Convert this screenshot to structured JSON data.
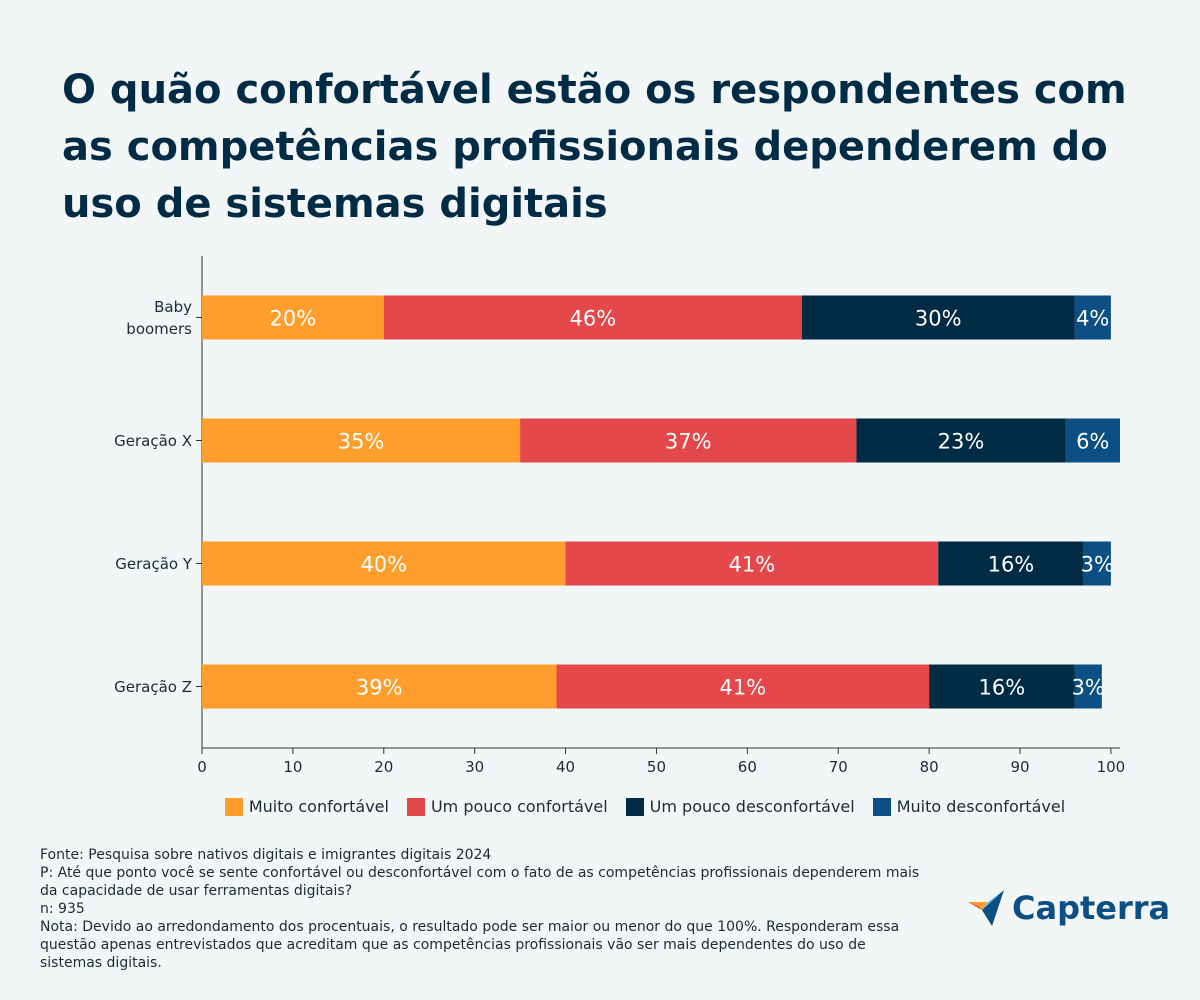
{
  "chart_data": {
    "type": "stacked-barh",
    "title": "O quão confortável estão os respondentes com as competências profissionais dependerem do uso de sistemas digitais",
    "categories": [
      "Baby boomers",
      "Geração X",
      "Geração Y",
      "Geração Z"
    ],
    "series": [
      {
        "name": "Muito confortável",
        "color": "#ff9e2c",
        "values": [
          20,
          35,
          40,
          39
        ],
        "value_labels": [
          "20%",
          "35%",
          "40%",
          "39%"
        ]
      },
      {
        "name": "Um pouco confortável",
        "color": "#e5484a",
        "values": [
          46,
          37,
          41,
          41
        ],
        "value_labels": [
          "46%",
          "37%",
          "41%",
          "41%"
        ]
      },
      {
        "name": "Um pouco desconfortável",
        "color": "#002b45",
        "values": [
          30,
          23,
          16,
          16
        ],
        "value_labels": [
          "30%",
          "23%",
          "16%",
          "16%"
        ]
      },
      {
        "name": "Muito desconfortável",
        "color": "#0b4f84",
        "values": [
          4,
          6,
          3,
          3
        ],
        "value_labels": [
          "4%",
          "6%",
          "3%",
          "3%"
        ]
      }
    ],
    "xlim": [
      0,
      101
    ],
    "xticks": [
      0,
      10,
      20,
      30,
      40,
      50,
      60,
      70,
      80,
      90,
      100
    ],
    "legend": "bottom"
  },
  "notes": [
    "Fonte: Pesquisa sobre nativos digitais e imigrantes digitais 2024",
    "P: Até que ponto você se sente confortável ou desconfortável com o fato de as competências profissionais dependerem mais da capacidade de usar ferramentas digitais?",
    "n: 935",
    "Nota: Devido ao arredondamento dos procentuais, o resultado pode ser maior ou menor do que 100%. Responderam essa questão apenas entrevistados que acreditam que as competências profissionais vão ser mais dependentes do uso de sistemas digitais."
  ],
  "logo": "Capterra"
}
